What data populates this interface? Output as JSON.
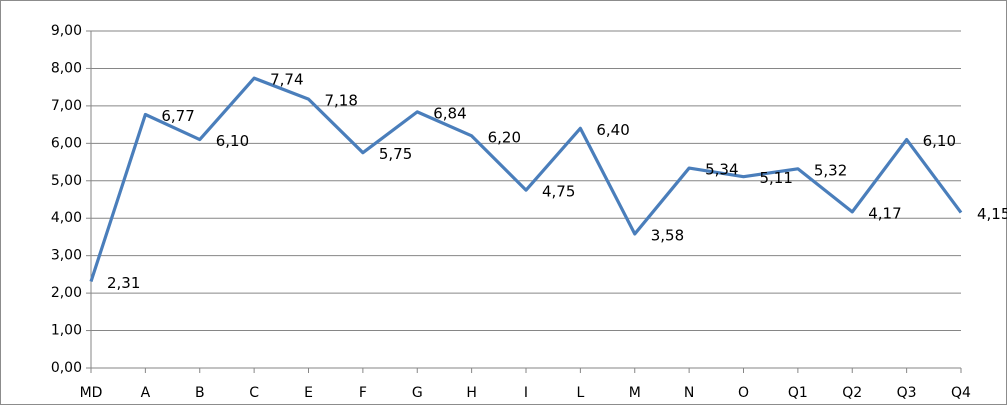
{
  "chart_data": {
    "type": "line",
    "categories": [
      "MD",
      "A",
      "B",
      "C",
      "E",
      "F",
      "G",
      "H",
      "I",
      "L",
      "M",
      "N",
      "O",
      "Q1",
      "Q2",
      "Q3",
      "Q4"
    ],
    "series": [
      {
        "name": null,
        "color": "#4a7ebb",
        "values": [
          2.31,
          6.77,
          6.1,
          7.74,
          7.18,
          5.75,
          6.84,
          6.2,
          4.75,
          6.4,
          3.58,
          5.34,
          5.11,
          5.32,
          4.17,
          6.1,
          4.15
        ],
        "value_labels": [
          "2,31",
          "6,77",
          "6,10",
          "7,74",
          "7,18",
          "5,75",
          "6,84",
          "6,20",
          "4,75",
          "6,40",
          "3,58",
          "5,34",
          "5,11",
          "5,32",
          "4,17",
          "6,10",
          "4,15"
        ]
      }
    ],
    "ylim": [
      0,
      9
    ],
    "yticks": [
      {
        "value": 0,
        "label": "0,00"
      },
      {
        "value": 1,
        "label": "1,00"
      },
      {
        "value": 2,
        "label": "2,00"
      },
      {
        "value": 3,
        "label": "3,00"
      },
      {
        "value": 4,
        "label": "4,00"
      },
      {
        "value": 5,
        "label": "5,00"
      },
      {
        "value": 6,
        "label": "6,00"
      },
      {
        "value": 7,
        "label": "7,00"
      },
      {
        "value": 8,
        "label": "8,00"
      },
      {
        "value": 9,
        "label": "9,00"
      }
    ],
    "grid": true
  }
}
